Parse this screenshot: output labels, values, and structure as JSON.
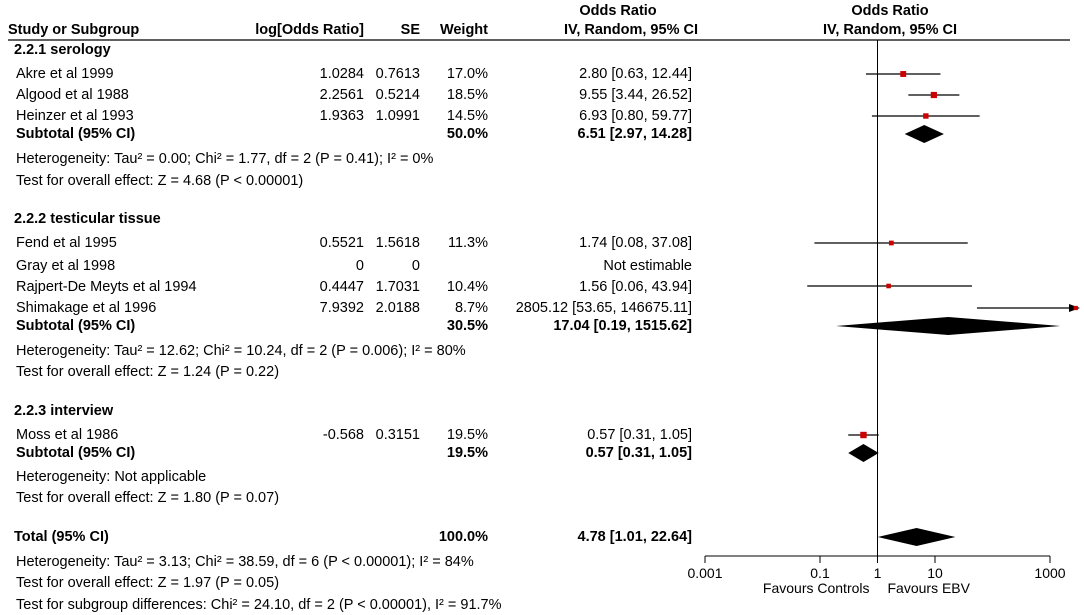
{
  "headers": {
    "or_top": "Odds Ratio",
    "study": "Study or Subgroup",
    "logor": "log[Odds Ratio]",
    "se": "SE",
    "weight": "Weight",
    "ci": "IV, Random, 95% CI",
    "plot_top": "Odds Ratio",
    "plot_sub": "IV, Random, 95% CI"
  },
  "groups": [
    {
      "title": "2.2.1 serology",
      "studies": [
        {
          "name": "Akre et al 1999",
          "logor": "1.0284",
          "se": "0.7613",
          "weight": "17.0%",
          "ci": "2.80 [0.63, 12.44]"
        },
        {
          "name": "Algood et al 1988",
          "logor": "2.2561",
          "se": "0.5214",
          "weight": "18.5%",
          "ci": "9.55 [3.44, 26.52]"
        },
        {
          "name": "Heinzer et al 1993",
          "logor": "1.9363",
          "se": "1.0991",
          "weight": "14.5%",
          "ci": "6.93 [0.80, 59.77]"
        }
      ],
      "subtotal": {
        "label": "Subtotal (95% CI)",
        "weight": "50.0%",
        "ci": "6.51 [2.97, 14.28]"
      },
      "heterogeneity": "Heterogeneity: Tau² = 0.00; Chi² = 1.77, df = 2 (P = 0.41); I² = 0%",
      "overall": "Test for overall effect: Z = 4.68 (P < 0.00001)"
    },
    {
      "title": "2.2.2 testicular tissue",
      "studies": [
        {
          "name": "Fend et al 1995",
          "logor": "0.5521",
          "se": "1.5618",
          "weight": "11.3%",
          "ci": "1.74 [0.08, 37.08]"
        },
        {
          "name": "Gray et al 1998",
          "logor": "0",
          "se": "0",
          "weight": "",
          "ci": "Not estimable"
        },
        {
          "name": "Rajpert-De Meyts et al 1994",
          "logor": "0.4447",
          "se": "1.7031",
          "weight": "10.4%",
          "ci": "1.56 [0.06, 43.94]"
        },
        {
          "name": "Shimakage et al 1996",
          "logor": "7.9392",
          "se": "2.0188",
          "weight": "8.7%",
          "ci": "2805.12 [53.65, 146675.11]"
        }
      ],
      "subtotal": {
        "label": "Subtotal (95% CI)",
        "weight": "30.5%",
        "ci": "17.04 [0.19, 1515.62]"
      },
      "heterogeneity": "Heterogeneity: Tau² = 12.62; Chi² = 10.24, df = 2 (P = 0.006); I² = 80%",
      "overall": "Test for overall effect: Z = 1.24 (P = 0.22)"
    },
    {
      "title": "2.2.3 interview",
      "studies": [
        {
          "name": "Moss et al 1986",
          "logor": "-0.568",
          "se": "0.3151",
          "weight": "19.5%",
          "ci": "0.57 [0.31, 1.05]"
        }
      ],
      "subtotal": {
        "label": "Subtotal (95% CI)",
        "weight": "19.5%",
        "ci": "0.57 [0.31, 1.05]"
      },
      "heterogeneity": "Heterogeneity: Not applicable",
      "overall": "Test for overall effect: Z = 1.80 (P = 0.07)"
    }
  ],
  "total": {
    "label": "Total (95% CI)",
    "weight": "100.0%",
    "ci": "4.78 [1.01, 22.64]",
    "heterogeneity": "Heterogeneity: Tau² = 3.13; Chi² = 38.59, df = 6 (P < 0.00001); I² = 84%",
    "overall": "Test for overall effect: Z = 1.97 (P = 0.05)",
    "subgroup": "Test for subgroup differences: Chi² = 24.10, df = 2 (P < 0.00001), I² = 91.7%"
  },
  "axis": {
    "ticks": [
      "0.001",
      "0.1",
      "1",
      "10",
      "1000"
    ],
    "favours_left": "Favours Controls",
    "favours_right": "Favours EBV"
  },
  "colors": {
    "square": "#cc0000",
    "line": "#000000"
  },
  "chart_data": {
    "type": "forest",
    "title": "Odds Ratio",
    "subtitle": "IV, Random, 95% CI",
    "x_scale": "log",
    "xlim": [
      0.001,
      1000
    ],
    "x_ticks": [
      0.001,
      0.1,
      1,
      10,
      1000
    ],
    "null_line": 1,
    "studies": [
      {
        "name": "Akre et al 1999",
        "or": 2.8,
        "lo": 0.63,
        "hi": 12.44,
        "weight": 17.0
      },
      {
        "name": "Algood et al 1988",
        "or": 9.55,
        "lo": 3.44,
        "hi": 26.52,
        "weight": 18.5
      },
      {
        "name": "Heinzer et al 1993",
        "or": 6.93,
        "lo": 0.8,
        "hi": 59.77,
        "weight": 14.5
      },
      {
        "name": "Fend et al 1995",
        "or": 1.74,
        "lo": 0.08,
        "hi": 37.08,
        "weight": 11.3
      },
      {
        "name": "Gray et al 1998",
        "or": null,
        "lo": null,
        "hi": null,
        "weight": 0
      },
      {
        "name": "Rajpert-De Meyts et al 1994",
        "or": 1.56,
        "lo": 0.06,
        "hi": 43.94,
        "weight": 10.4
      },
      {
        "name": "Shimakage et al 1996",
        "or": 2805.12,
        "lo": 53.65,
        "hi": 146675.11,
        "weight": 8.7
      },
      {
        "name": "Moss et al 1986",
        "or": 0.57,
        "lo": 0.31,
        "hi": 1.05,
        "weight": 19.5
      }
    ],
    "summaries": [
      {
        "name": "Subtotal (95% CI)",
        "group": "2.2.1 serology",
        "or": 6.51,
        "lo": 2.97,
        "hi": 14.28
      },
      {
        "name": "Subtotal (95% CI)",
        "group": "2.2.2 testicular tissue",
        "or": 17.04,
        "lo": 0.19,
        "hi": 1515.62
      },
      {
        "name": "Subtotal (95% CI)",
        "group": "2.2.3 interview",
        "or": 0.57,
        "lo": 0.31,
        "hi": 1.05
      },
      {
        "name": "Total (95% CI)",
        "group": "all",
        "or": 4.78,
        "lo": 1.01,
        "hi": 22.64
      }
    ]
  }
}
